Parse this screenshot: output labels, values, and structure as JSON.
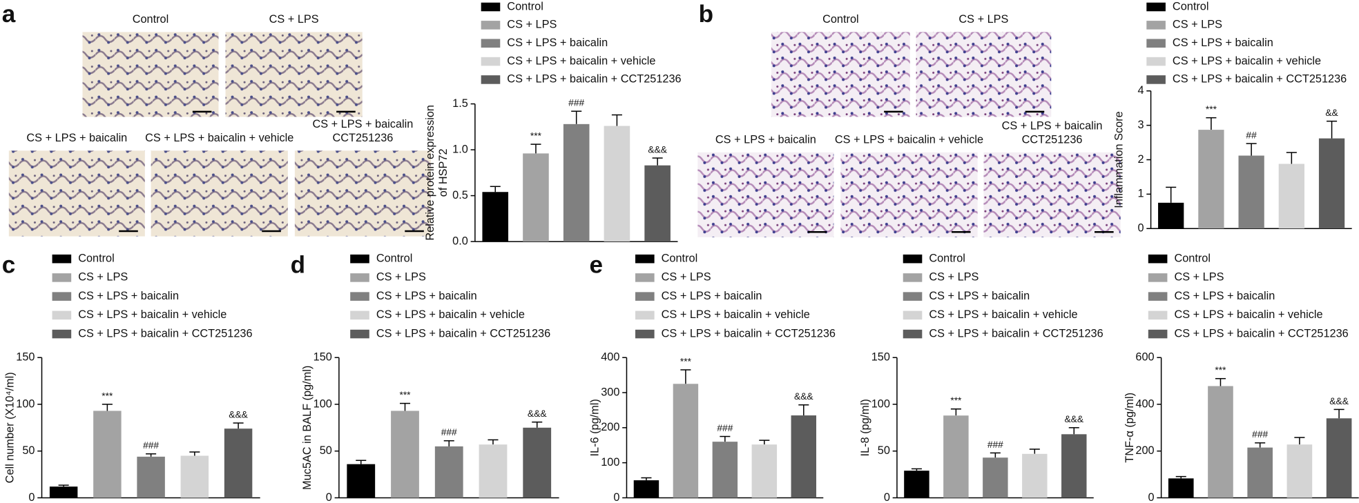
{
  "panel_letters": [
    "a",
    "b",
    "c",
    "d",
    "e"
  ],
  "micrograph_captions_a": [
    [
      "Control"
    ],
    [
      "CS + LPS"
    ],
    [
      "CS + LPS + baicalin"
    ],
    [
      "CS + LPS + baicalin + vehicle"
    ],
    [
      "CS + LPS + baicalin",
      "CCT251236"
    ]
  ],
  "micrograph_captions_b": [
    [
      "Control"
    ],
    [
      "CS + LPS"
    ],
    [
      "CS + LPS + baicalin"
    ],
    [
      "CS + LPS + baicalin + vehicle"
    ],
    [
      "CS + LPS + baicalin",
      "CCT251236"
    ]
  ],
  "chart_data": [
    {
      "type": "bar",
      "ylabel": [
        "Relative protein expression",
        "of HSP72"
      ],
      "ylim": [
        0,
        1.5
      ],
      "yticks": [
        {
          "value": 0,
          "label": "0.0"
        },
        {
          "value": 0.5,
          "label": "0.5"
        },
        {
          "value": 1,
          "label": "1.0"
        },
        {
          "value": 1.5,
          "label": "1.5"
        }
      ],
      "series": [
        {
          "name": "Control",
          "color": "#000000",
          "values": [
            0.54
          ],
          "errors": [
            0.06
          ],
          "sig": [
            null
          ]
        },
        {
          "name": "CS + LPS",
          "color": "#a3a3a3",
          "values": [
            0.96
          ],
          "errors": [
            0.1
          ],
          "sig": [
            "***"
          ]
        },
        {
          "name": "CS + LPS + baicalin",
          "color": "#808080",
          "values": [
            1.28
          ],
          "errors": [
            0.14
          ],
          "sig": [
            "###"
          ]
        },
        {
          "name": "CS + LPS + baicalin + vehicle",
          "color": "#d4d4d4",
          "values": [
            1.26
          ],
          "errors": [
            0.12
          ],
          "sig": [
            null
          ]
        },
        {
          "name": "CS + LPS + baicalin + CCT251236",
          "color": "#5c5c5c",
          "values": [
            0.83
          ],
          "errors": [
            0.08
          ],
          "sig": [
            "&&&"
          ]
        }
      ]
    },
    {
      "type": "bar",
      "ylabel": [
        "Inflammation Score"
      ],
      "ylim": [
        0,
        4
      ],
      "yticks": [
        0,
        1,
        2,
        3,
        4
      ],
      "series": [
        {
          "name": "Control",
          "color": "#000000",
          "values": [
            0.75
          ],
          "errors": [
            0.45
          ],
          "sig": [
            null
          ]
        },
        {
          "name": "CS + LPS",
          "color": "#a3a3a3",
          "values": [
            2.87
          ],
          "errors": [
            0.35
          ],
          "sig": [
            "***"
          ]
        },
        {
          "name": "CS + LPS + baicalin",
          "color": "#808080",
          "values": [
            2.12
          ],
          "errors": [
            0.35
          ],
          "sig": [
            "##"
          ]
        },
        {
          "name": "CS + LPS + baicalin + vehicle",
          "color": "#d4d4d4",
          "values": [
            1.88
          ],
          "errors": [
            0.33
          ],
          "sig": [
            null
          ]
        },
        {
          "name": "CS + LPS + baicalin + CCT251236",
          "color": "#5c5c5c",
          "values": [
            2.62
          ],
          "errors": [
            0.5
          ],
          "sig": [
            "&&"
          ]
        }
      ]
    },
    {
      "type": "bar",
      "ylabel": [
        "Cell number (X10⁴/ml)"
      ],
      "ylim": [
        0,
        150
      ],
      "yticks": [
        0,
        50,
        100,
        150
      ],
      "series": [
        {
          "name": "Control",
          "color": "#000000",
          "values": [
            12
          ],
          "errors": [
            1.5
          ],
          "sig": [
            null
          ]
        },
        {
          "name": "CS + LPS",
          "color": "#a3a3a3",
          "values": [
            93
          ],
          "errors": [
            7
          ],
          "sig": [
            "***"
          ]
        },
        {
          "name": "CS + LPS + baicalin",
          "color": "#808080",
          "values": [
            44
          ],
          "errors": [
            3
          ],
          "sig": [
            "###"
          ]
        },
        {
          "name": "CS + LPS + baicalin + vehicle",
          "color": "#d4d4d4",
          "values": [
            45
          ],
          "errors": [
            4
          ],
          "sig": [
            null
          ]
        },
        {
          "name": "CS + LPS + baicalin + CCT251236",
          "color": "#5c5c5c",
          "values": [
            74
          ],
          "errors": [
            6
          ],
          "sig": [
            "&&&"
          ]
        }
      ]
    },
    {
      "type": "bar",
      "ylabel": [
        "Muc5AC in BALF (pg/ml)"
      ],
      "ylim": [
        0,
        150
      ],
      "yticks": [
        0,
        50,
        100,
        150
      ],
      "series": [
        {
          "name": "Control",
          "color": "#000000",
          "values": [
            36
          ],
          "errors": [
            4
          ],
          "sig": [
            null
          ]
        },
        {
          "name": "CS + LPS",
          "color": "#a3a3a3",
          "values": [
            93
          ],
          "errors": [
            8
          ],
          "sig": [
            "***"
          ]
        },
        {
          "name": "CS + LPS + baicalin",
          "color": "#808080",
          "values": [
            55
          ],
          "errors": [
            6
          ],
          "sig": [
            "###"
          ]
        },
        {
          "name": "CS + LPS + baicalin + vehicle",
          "color": "#d4d4d4",
          "values": [
            57
          ],
          "errors": [
            5
          ],
          "sig": [
            null
          ]
        },
        {
          "name": "CS + LPS + baicalin + CCT251236",
          "color": "#5c5c5c",
          "values": [
            75
          ],
          "errors": [
            6
          ],
          "sig": [
            "&&&"
          ]
        }
      ]
    },
    {
      "type": "bar",
      "ylabel": [
        "IL-6 (pg/ml)"
      ],
      "ylim": [
        0,
        400
      ],
      "yticks": [
        0,
        100,
        200,
        300,
        400
      ],
      "series": [
        {
          "name": "Control",
          "color": "#000000",
          "values": [
            50
          ],
          "errors": [
            7
          ],
          "sig": [
            null
          ]
        },
        {
          "name": "CS + LPS",
          "color": "#a3a3a3",
          "values": [
            325
          ],
          "errors": [
            40
          ],
          "sig": [
            "***"
          ]
        },
        {
          "name": "CS + LPS + baicalin",
          "color": "#808080",
          "values": [
            160
          ],
          "errors": [
            15
          ],
          "sig": [
            "###"
          ]
        },
        {
          "name": "CS + LPS + baicalin + vehicle",
          "color": "#d4d4d4",
          "values": [
            152
          ],
          "errors": [
            12
          ],
          "sig": [
            null
          ]
        },
        {
          "name": "CS + LPS + baicalin + CCT251236",
          "color": "#5c5c5c",
          "values": [
            235
          ],
          "errors": [
            30
          ],
          "sig": [
            "&&&"
          ]
        }
      ]
    },
    {
      "type": "bar",
      "ylabel": [
        "IL-8 (pg/ml)"
      ],
      "ylim": [
        0,
        150
      ],
      "yticks": [
        0,
        50,
        100,
        150
      ],
      "series": [
        {
          "name": "Control",
          "color": "#000000",
          "values": [
            29
          ],
          "errors": [
            2
          ],
          "sig": [
            null
          ]
        },
        {
          "name": "CS + LPS",
          "color": "#a3a3a3",
          "values": [
            88
          ],
          "errors": [
            7
          ],
          "sig": [
            "***"
          ]
        },
        {
          "name": "CS + LPS + baicalin",
          "color": "#808080",
          "values": [
            43
          ],
          "errors": [
            5
          ],
          "sig": [
            "###"
          ]
        },
        {
          "name": "CS + LPS + baicalin + vehicle",
          "color": "#d4d4d4",
          "values": [
            47
          ],
          "errors": [
            5
          ],
          "sig": [
            null
          ]
        },
        {
          "name": "CS + LPS + baicalin + CCT251236",
          "color": "#5c5c5c",
          "values": [
            68
          ],
          "errors": [
            7
          ],
          "sig": [
            "&&&"
          ]
        }
      ]
    },
    {
      "type": "bar",
      "ylabel": [
        "TNF-α (pg/ml)"
      ],
      "ylim": [
        0,
        600
      ],
      "yticks": [
        0,
        200,
        400,
        600
      ],
      "series": [
        {
          "name": "Control",
          "color": "#000000",
          "values": [
            83
          ],
          "errors": [
            8
          ],
          "sig": [
            null
          ]
        },
        {
          "name": "CS + LPS",
          "color": "#a3a3a3",
          "values": [
            478
          ],
          "errors": [
            32
          ],
          "sig": [
            "***"
          ]
        },
        {
          "name": "CS + LPS + baicalin",
          "color": "#808080",
          "values": [
            215
          ],
          "errors": [
            20
          ],
          "sig": [
            "###"
          ]
        },
        {
          "name": "CS + LPS + baicalin + vehicle",
          "color": "#d4d4d4",
          "values": [
            228
          ],
          "errors": [
            30
          ],
          "sig": [
            null
          ]
        },
        {
          "name": "CS + LPS + baicalin + CCT251236",
          "color": "#5c5c5c",
          "values": [
            340
          ],
          "errors": [
            38
          ],
          "sig": [
            "&&&"
          ]
        }
      ]
    }
  ]
}
